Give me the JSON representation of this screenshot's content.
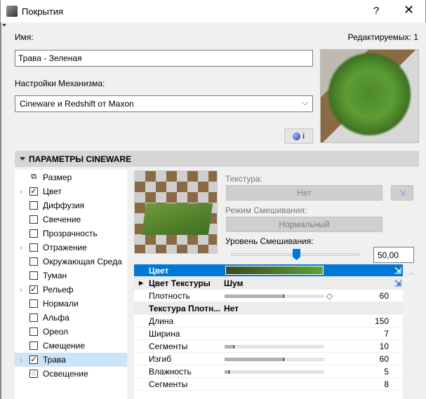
{
  "window": {
    "title": "Покрытия",
    "help": "?",
    "close": "✕"
  },
  "name_label": "Имя:",
  "editable": "Редактируемых: 1",
  "name_value": "Трава - Зеленая",
  "engine_label": "Настройки Механизма:",
  "engine_value": "Cineware и Redshift от Maxon",
  "info_button": "i",
  "section_title": "ПАРАМЕТРЫ CINEWARE",
  "channels": [
    {
      "label": "Размер",
      "type": "size"
    },
    {
      "label": "Цвет",
      "checked": true,
      "expand": true
    },
    {
      "label": "Диффузия",
      "checked": false
    },
    {
      "label": "Свечение",
      "checked": false
    },
    {
      "label": "Прозрачность",
      "checked": false
    },
    {
      "label": "Отражение",
      "checked": false,
      "expand": true
    },
    {
      "label": "Окружающая Среда",
      "checked": false
    },
    {
      "label": "Туман",
      "checked": false
    },
    {
      "label": "Рельеф",
      "checked": true,
      "expand": true
    },
    {
      "label": "Нормали",
      "checked": false
    },
    {
      "label": "Альфа",
      "checked": false
    },
    {
      "label": "Ореол",
      "checked": false
    },
    {
      "label": "Смещение",
      "checked": false
    },
    {
      "label": "Трава",
      "checked": true,
      "expand": true,
      "selected": true
    },
    {
      "label": "Освещение",
      "type": "light"
    }
  ],
  "texture": {
    "label": "Текстура:",
    "value": "Нет"
  },
  "blend_mode": {
    "label": "Режим Смешивания:",
    "value": "Нормальный"
  },
  "blend_level": {
    "label": "Уровень Смешивания:",
    "value": "50,00",
    "fraction": 0.5
  },
  "params": [
    {
      "name": "Цвет",
      "kind": "color",
      "colors": [
        "#3d4a1f",
        "#5ea234"
      ],
      "selected": true
    },
    {
      "name": "Цвет Текстуры",
      "value": "Шум",
      "kind": "header"
    },
    {
      "name": "Плотность",
      "num": "60",
      "slider": 0.6
    },
    {
      "name": "Текстура Плотн...",
      "value": "Нет",
      "kind": "header"
    },
    {
      "name": "Длина",
      "num": "150"
    },
    {
      "name": "Ширина",
      "num": "7"
    },
    {
      "name": "Сегменты",
      "num": "10",
      "slider": 0.1
    },
    {
      "name": "Изгиб",
      "num": "60",
      "slider": 0.6
    },
    {
      "name": "Влажность",
      "num": "5",
      "slider": 0.05
    },
    {
      "name": "Сегменты",
      "num": "8"
    }
  ],
  "colors": {
    "accent": "#0078d7",
    "selection": "#cce4f7"
  }
}
